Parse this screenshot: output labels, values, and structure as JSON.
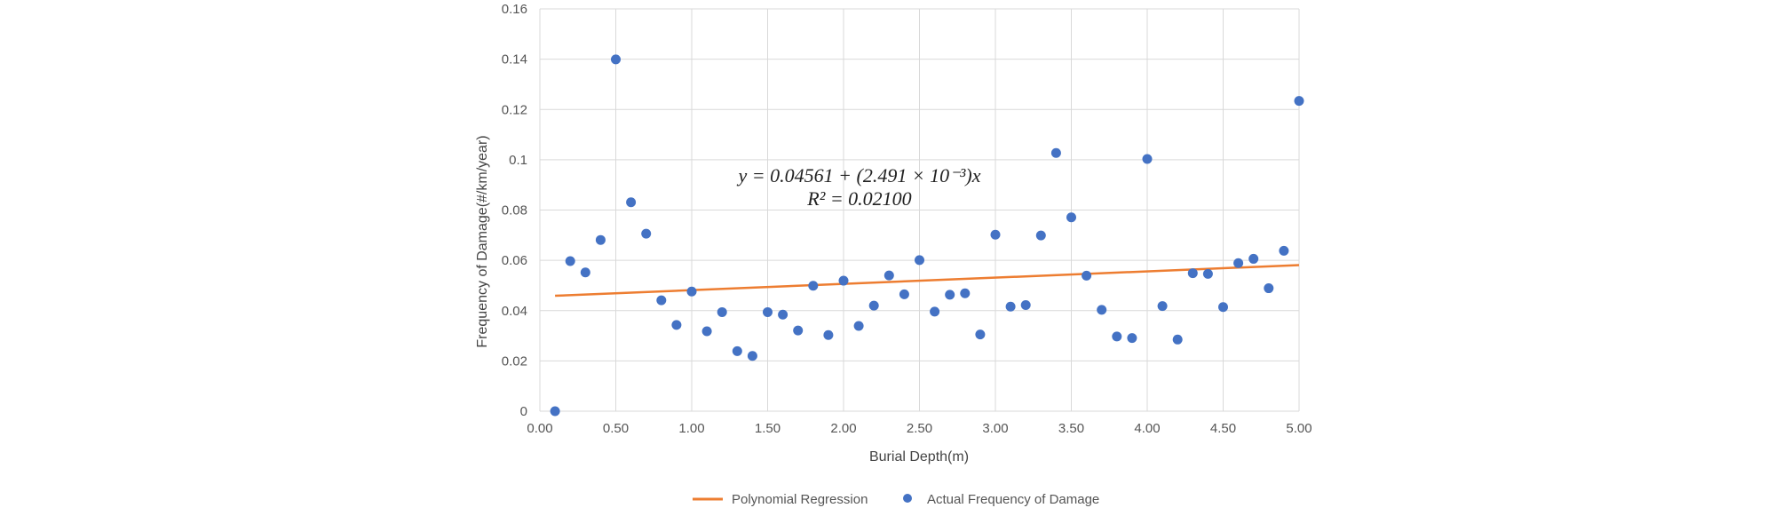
{
  "chart_data": {
    "type": "scatter",
    "xlabel": "Burial Depth(m)",
    "ylabel": "Frequency of Damage(#/km/year)",
    "xlim": [
      0,
      5
    ],
    "ylim": [
      0,
      0.16
    ],
    "x_ticks": [
      "0.00",
      "0.50",
      "1.00",
      "1.50",
      "2.00",
      "2.50",
      "3.00",
      "3.50",
      "4.00",
      "4.50",
      "5.00"
    ],
    "y_ticks": [
      "0",
      "0.02",
      "0.04",
      "0.06",
      "0.08",
      "0.1",
      "0.12",
      "0.14",
      "0.16"
    ],
    "grid": true,
    "legend_position": "bottom",
    "annotation": {
      "equation": "y = 0.04561 + (2.491 × 10⁻³)x",
      "r_squared": "R² = 0.02100"
    },
    "series": [
      {
        "name": "Polynomial Regression",
        "kind": "line",
        "color": "#ed7d31",
        "x": [
          0.1,
          5.0
        ],
        "y": [
          0.0459,
          0.0581
        ]
      },
      {
        "name": "Actual Frequency of Damage",
        "kind": "scatter",
        "color": "#4472c4",
        "x": [
          0.1,
          0.2,
          0.3,
          0.4,
          0.5,
          0.6,
          0.7,
          0.8,
          0.9,
          1.0,
          1.1,
          1.2,
          1.3,
          1.4,
          1.5,
          1.6,
          1.7,
          1.8,
          1.9,
          2.0,
          2.1,
          2.2,
          2.3,
          2.4,
          2.5,
          2.6,
          2.7,
          2.8,
          2.9,
          3.0,
          3.1,
          3.2,
          3.3,
          3.4,
          3.5,
          3.6,
          3.7,
          3.8,
          3.9,
          4.0,
          4.1,
          4.2,
          4.3,
          4.4,
          4.5,
          4.6,
          4.7,
          4.8,
          4.9,
          5.0
        ],
        "y": [
          0.0,
          0.0597,
          0.0552,
          0.0681,
          0.1399,
          0.0831,
          0.0706,
          0.0441,
          0.0343,
          0.0476,
          0.0318,
          0.0394,
          0.0239,
          0.022,
          0.0394,
          0.0384,
          0.0321,
          0.0499,
          0.0303,
          0.0519,
          0.0339,
          0.042,
          0.054,
          0.0465,
          0.0601,
          0.0396,
          0.0463,
          0.0469,
          0.0305,
          0.0702,
          0.0416,
          0.0422,
          0.0699,
          0.1027,
          0.0771,
          0.0539,
          0.0403,
          0.0297,
          0.0291,
          0.1003,
          0.0418,
          0.0285,
          0.0549,
          0.0546,
          0.0414,
          0.0589,
          0.0606,
          0.0489,
          0.0638,
          0.1234
        ]
      }
    ]
  }
}
